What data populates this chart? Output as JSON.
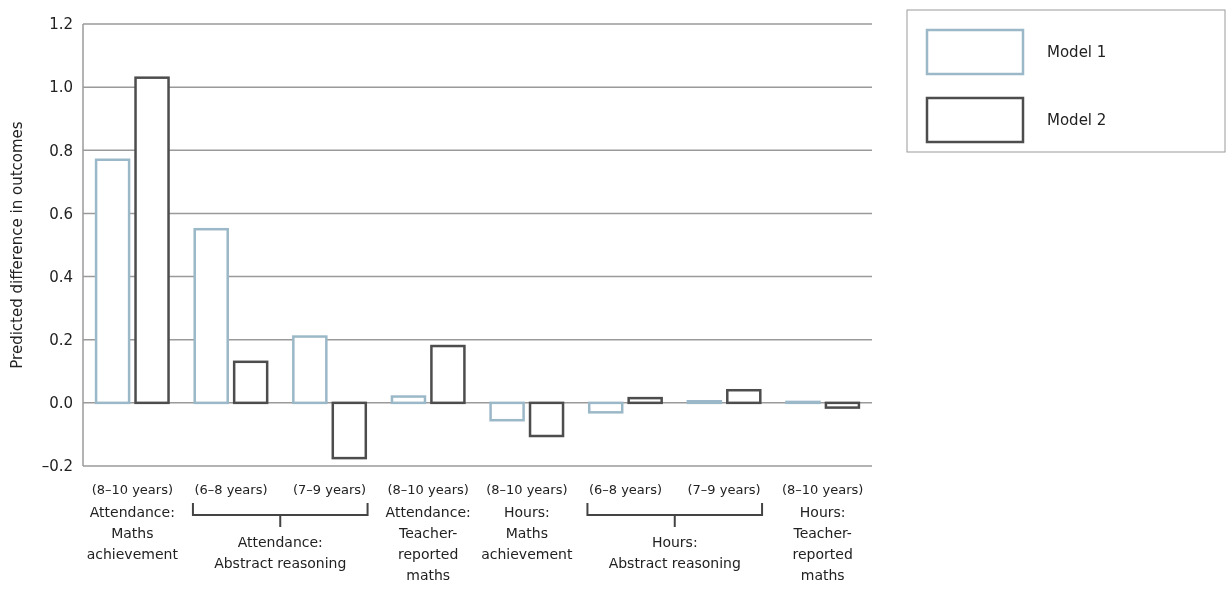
{
  "chart_data": {
    "type": "bar",
    "ylabel": "Predicted difference in outcomes",
    "categories": [
      "(8–10 years)",
      "(6–8 years)",
      "(7–9 years)",
      "(8–10 years)",
      "(8–10 years)",
      "(6–8 years)",
      "(7–9 years)",
      "(8–10 years)"
    ],
    "series": [
      {
        "name": "Model 1",
        "color": "#9bb8c8",
        "values": [
          0.77,
          0.55,
          0.21,
          0.02,
          -0.055,
          -0.03,
          0.005,
          0.003
        ]
      },
      {
        "name": "Model 2",
        "color": "#4d4d4d",
        "values": [
          1.03,
          0.13,
          -0.175,
          0.18,
          -0.105,
          0.015,
          0.04,
          -0.015
        ]
      }
    ],
    "ylim": [
      -0.2,
      1.2
    ],
    "yticks": [
      {
        "value": -0.2,
        "label": "–0.2"
      },
      "0.0",
      0.2,
      0.4,
      0.6,
      0.8,
      "1.0",
      1.2
    ],
    "grid": "y",
    "legend": "top right",
    "annotations": [
      "Attendance:\nMaths\nachievement",
      "Attendance:\nAbstract reasoning",
      "Attendance:\nTeacher-\nreported\nmaths",
      "Hours:\nMaths\nachievement",
      "Hours:\nAbstract reasoning",
      "Hours:\nTeacher-\nreported\nmaths"
    ]
  }
}
